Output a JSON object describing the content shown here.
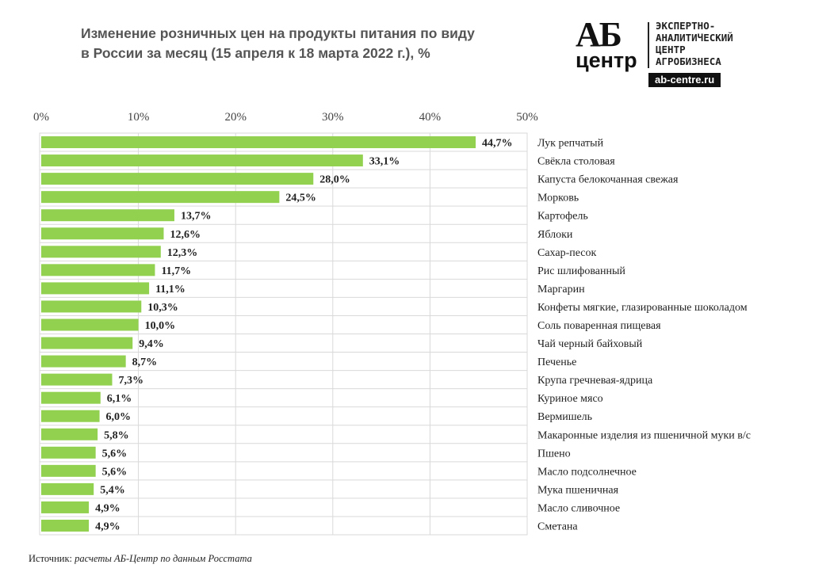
{
  "title_lines": [
    "Изменение розничных цен на продукты питания по виду",
    "в России за месяц (15 апреля к 18 марта 2022 г.), %"
  ],
  "logo": {
    "mark_top": "АБ",
    "mark_bottom": "центр",
    "desc_lines": [
      "ЭКСПЕРТНО-",
      "АНАЛИТИЧЕСКИЙ",
      "ЦЕНТР",
      "АГРОБИЗНЕСА"
    ],
    "url": "ab-centre.ru"
  },
  "source": {
    "label": "Источник:",
    "text": "расчеты АБ-Центр  по данным  Росстата"
  },
  "chart_data": {
    "type": "bar",
    "orientation": "horizontal",
    "title": "Изменение розничных цен на продукты питания по виду в России за месяц (15 апреля к 18 марта 2022 г.), %",
    "xlim": [
      0,
      50
    ],
    "x_ticks": [
      "0%",
      "10%",
      "20%",
      "30%",
      "40%",
      "50%"
    ],
    "x_axis_position": "top",
    "grid": true,
    "bar_color": "#92d050",
    "categories": [
      "Лук репчатый",
      "Свёкла столовая",
      "Капуста белокочанная свежая",
      "Морковь",
      "Картофель",
      "Яблоки",
      "Сахар-песок",
      "Рис шлифованный",
      "Маргарин",
      "Конфеты мягкие, глазированные шоколадом",
      "Соль поваренная пищевая",
      "Чай черный байховый",
      "Печенье",
      "Крупа гречневая-ядрица",
      "Куриное мясо",
      "Вермишель",
      "Макаронные изделия из пшеничной муки в/с",
      "Пшено",
      "Масло подсолнечное",
      "Мука пшеничная",
      "Масло сливочное",
      "Сметана"
    ],
    "values": [
      44.7,
      33.1,
      28.0,
      24.5,
      13.7,
      12.6,
      12.3,
      11.7,
      11.1,
      10.3,
      10.0,
      9.4,
      8.7,
      7.3,
      6.1,
      6.0,
      5.8,
      5.6,
      5.6,
      5.4,
      4.9,
      4.9
    ],
    "data_labels": [
      "44,7%",
      "33,1%",
      "28,0%",
      "24,5%",
      "13,7%",
      "12,6%",
      "12,3%",
      "11,7%",
      "11,1%",
      "10,3%",
      "10,0%",
      "9,4%",
      "8,7%",
      "7,3%",
      "6,1%",
      "6,0%",
      "5,8%",
      "5,6%",
      "5,6%",
      "5,4%",
      "4,9%",
      "4,9%"
    ]
  }
}
